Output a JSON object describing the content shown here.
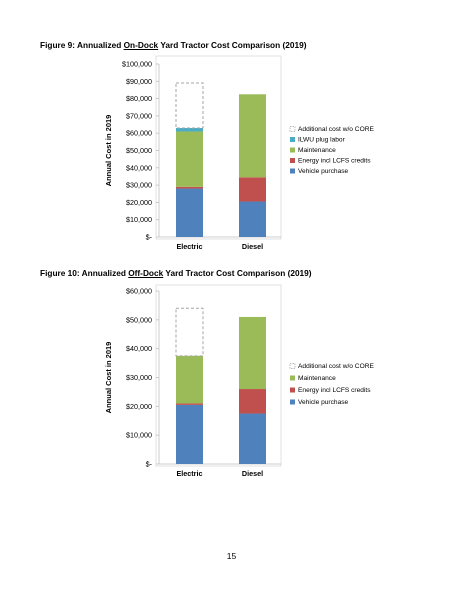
{
  "figure9": {
    "caption_prefix": "Figure 9: Annualized ",
    "caption_underlined": "On-Dock",
    "caption_suffix": " Yard Tractor Cost Comparison (2019)"
  },
  "figure10": {
    "caption_prefix": "Figure 10: Annualized ",
    "caption_underlined": "Off-Dock",
    "caption_suffix": " Yard Tractor Cost Comparison (2019)"
  },
  "page_number": "15",
  "chart_data": [
    {
      "type": "bar",
      "stacked": true,
      "title": "",
      "xlabel": "",
      "ylabel": "Annual Cost in 2019",
      "ylim": [
        0,
        100000
      ],
      "yticks": [
        0,
        10000,
        20000,
        30000,
        40000,
        50000,
        60000,
        70000,
        80000,
        90000,
        100000
      ],
      "ytick_labels": [
        "$-",
        "$10,000",
        "$20,000",
        "$30,000",
        "$40,000",
        "$50,000",
        "$60,000",
        "$70,000",
        "$80,000",
        "$90,000",
        "$100,000"
      ],
      "categories": [
        "Electric",
        "Diesel"
      ],
      "grid": false,
      "legend_position": "right",
      "series": [
        {
          "name": "Vehicle purchase",
          "color": "#4f81bd",
          "style": "solid",
          "values": [
            28000,
            20500
          ]
        },
        {
          "name": "Energy incl LCFS credits",
          "color": "#c0504d",
          "style": "solid",
          "values": [
            1000,
            14000
          ]
        },
        {
          "name": "Maintenance",
          "color": "#9bbb59",
          "style": "solid",
          "values": [
            32000,
            48000
          ]
        },
        {
          "name": "ILWU plug labor",
          "color": "#4bacc6",
          "style": "solid",
          "values": [
            2000,
            0
          ]
        },
        {
          "name": "Additional cost w/o CORE",
          "color": "#a6a6a6",
          "style": "dashed-outline",
          "values": [
            26000,
            0
          ]
        }
      ]
    },
    {
      "type": "bar",
      "stacked": true,
      "title": "",
      "xlabel": "",
      "ylabel": "Annual Cost in 2019",
      "ylim": [
        0,
        60000
      ],
      "yticks": [
        0,
        10000,
        20000,
        30000,
        40000,
        50000,
        60000
      ],
      "ytick_labels": [
        "$-",
        "$10,000",
        "$20,000",
        "$30,000",
        "$40,000",
        "$50,000",
        "$60,000"
      ],
      "categories": [
        "Electric",
        "Diesel"
      ],
      "grid": false,
      "legend_position": "right",
      "series": [
        {
          "name": "Vehicle purchase",
          "color": "#4f81bd",
          "style": "solid",
          "values": [
            20500,
            17500
          ]
        },
        {
          "name": "Energy incl LCFS credits",
          "color": "#c0504d",
          "style": "solid",
          "values": [
            500,
            8500
          ]
        },
        {
          "name": "Maintenance",
          "color": "#9bbb59",
          "style": "solid",
          "values": [
            16500,
            25000
          ]
        },
        {
          "name": "Additional cost w/o CORE",
          "color": "#a6a6a6",
          "style": "dashed-outline",
          "values": [
            16500,
            0
          ]
        }
      ]
    }
  ]
}
